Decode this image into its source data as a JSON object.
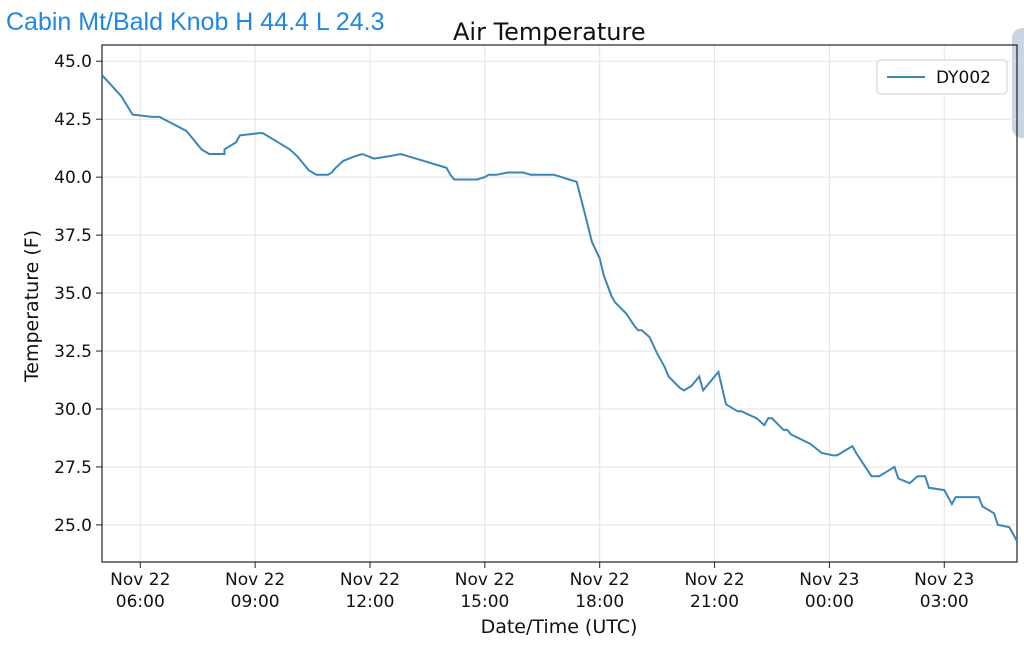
{
  "header": {
    "station_text": "Cabin Mt/Bald Knob H 44.4 L 24.3"
  },
  "chart_data": {
    "type": "line",
    "title": "Air Temperature",
    "xlabel": "Date/Time (UTC)",
    "ylabel": "Temperature (F)",
    "ylim": [
      23.4,
      45.7
    ],
    "yticks": [
      "45.0",
      "42.5",
      "40.0",
      "37.5",
      "35.0",
      "32.5",
      "30.0",
      "27.5",
      "25.0"
    ],
    "ytick_values": [
      45.0,
      42.5,
      40.0,
      37.5,
      35.0,
      32.5,
      30.0,
      27.5,
      25.0
    ],
    "xlim_hours": [
      5.0,
      28.9
    ],
    "xticks": [
      {
        "hour": 6,
        "line1": "Nov 22",
        "line2": "06:00"
      },
      {
        "hour": 9,
        "line1": "Nov 22",
        "line2": "09:00"
      },
      {
        "hour": 12,
        "line1": "Nov 22",
        "line2": "12:00"
      },
      {
        "hour": 15,
        "line1": "Nov 22",
        "line2": "15:00"
      },
      {
        "hour": 18,
        "line1": "Nov 22",
        "line2": "18:00"
      },
      {
        "hour": 21,
        "line1": "Nov 22",
        "line2": "21:00"
      },
      {
        "hour": 24,
        "line1": "Nov 23",
        "line2": "00:00"
      },
      {
        "hour": 27,
        "line1": "Nov 23",
        "line2": "03:00"
      }
    ],
    "grid": true,
    "legend_position": "top-right",
    "colors": {
      "series": "#3a87b6",
      "grid": "#e3e3e3"
    },
    "series": [
      {
        "name": "DY002",
        "x": [
          5.0,
          5.5,
          5.5,
          5.8,
          6.3,
          6.5,
          7.2,
          7.3,
          7.6,
          7.8,
          7.9,
          8.2,
          8.2,
          8.5,
          8.6,
          9.1,
          9.2,
          9.4,
          9.9,
          10.1,
          10.4,
          10.6,
          10.9,
          11.0,
          11.1,
          11.3,
          11.6,
          11.8,
          12.1,
          12.5,
          12.8,
          13.0,
          13.2,
          14.0,
          14.1,
          14.2,
          14.5,
          14.6,
          14.8,
          15.0,
          15.1,
          15.3,
          15.6,
          16.0,
          16.2,
          16.6,
          16.8,
          17.0,
          17.2,
          17.4,
          17.6,
          17.8,
          18.0,
          18.1,
          18.3,
          18.4,
          18.7,
          18.9,
          19.0,
          19.1,
          19.3,
          19.5,
          19.7,
          19.8,
          20.1,
          20.2,
          20.4,
          20.6,
          20.7,
          21.1,
          21.3,
          21.6,
          21.7,
          22.1,
          22.3,
          22.4,
          22.5,
          22.8,
          22.9,
          23.0,
          23.5,
          23.8,
          24.1,
          24.2,
          24.6,
          24.7,
          25.1,
          25.3,
          25.7,
          25.8,
          26.1,
          26.3,
          26.5,
          26.6,
          27.0,
          27.2,
          27.3,
          27.5,
          27.9,
          28.0,
          28.3,
          28.4,
          28.7,
          28.9
        ],
        "y": [
          44.4,
          43.5,
          43.5,
          42.7,
          42.6,
          42.6,
          42.0,
          41.8,
          41.2,
          41.0,
          41.0,
          41.0,
          41.2,
          41.5,
          41.8,
          41.9,
          41.9,
          41.7,
          41.2,
          40.9,
          40.3,
          40.1,
          40.1,
          40.2,
          40.4,
          40.7,
          40.9,
          41.0,
          40.8,
          40.9,
          41.0,
          40.9,
          40.8,
          40.4,
          40.1,
          39.9,
          39.9,
          39.9,
          39.9,
          40.0,
          40.1,
          40.1,
          40.2,
          40.2,
          40.1,
          40.1,
          40.1,
          40.0,
          39.9,
          39.8,
          38.5,
          37.2,
          36.5,
          35.8,
          34.9,
          34.6,
          34.1,
          33.6,
          33.4,
          33.4,
          33.1,
          32.4,
          31.8,
          31.4,
          30.9,
          30.8,
          31.0,
          31.4,
          30.8,
          31.6,
          30.2,
          29.9,
          29.9,
          29.6,
          29.3,
          29.6,
          29.6,
          29.1,
          29.1,
          28.9,
          28.5,
          28.1,
          28.0,
          28.0,
          28.4,
          28.1,
          27.1,
          27.1,
          27.5,
          27.0,
          26.8,
          27.1,
          27.1,
          26.6,
          26.5,
          25.9,
          26.2,
          26.2,
          26.2,
          25.8,
          25.5,
          25.0,
          24.9,
          24.3
        ]
      }
    ]
  }
}
